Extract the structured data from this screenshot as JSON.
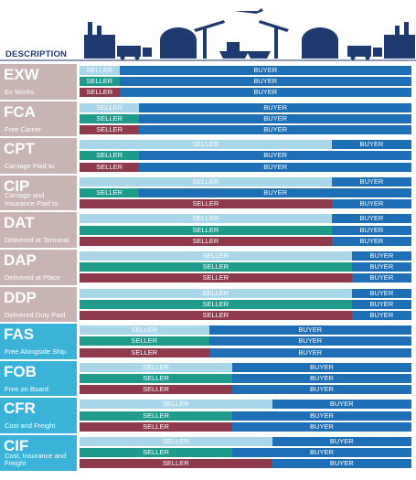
{
  "header": {
    "column": "DESCRIPTION"
  },
  "labels": {
    "seller": "SELLER",
    "buyer": "BUYER"
  },
  "row_colors": [
    "#a9d6e8",
    "#1f9b8c",
    "#8e3a4c"
  ],
  "buyer_color": "#1f6fb6",
  "terms": [
    {
      "code": "EXW",
      "description": "Ex Works",
      "color": "#c9b4b4",
      "seller_share": [
        12,
        12,
        12
      ]
    },
    {
      "code": "FCA",
      "description": "Free Carrier",
      "color": "#c9b4b4",
      "seller_share": [
        18,
        18,
        18
      ]
    },
    {
      "code": "CPT",
      "description": "Carriage Paid to",
      "color": "#c9b4b4",
      "seller_share": [
        76,
        18,
        18
      ]
    },
    {
      "code": "CIP",
      "description": "Carriage and Insurance Paid to",
      "color": "#c9b4b4",
      "seller_share": [
        76,
        18,
        76
      ]
    },
    {
      "code": "DAT",
      "description": "Delivered at Terminal",
      "color": "#c9b4b4",
      "seller_share": [
        76,
        76,
        76
      ]
    },
    {
      "code": "DAP",
      "description": "Delivered at Place",
      "color": "#c9b4b4",
      "seller_share": [
        82,
        82,
        82
      ]
    },
    {
      "code": "DDP",
      "description": "Delivered Duty Paid",
      "color": "#c9b4b4",
      "seller_share": [
        82,
        82,
        82
      ]
    },
    {
      "code": "FAS",
      "description": "Free Alongside Ship",
      "color": "#3bb3d8",
      "seller_share": [
        39,
        39,
        39
      ]
    },
    {
      "code": "FOB",
      "description": "Free on Board",
      "color": "#3bb3d8",
      "seller_share": [
        46,
        46,
        46
      ]
    },
    {
      "code": "CFR",
      "description": "Cost and Freight",
      "color": "#3bb3d8",
      "seller_share": [
        58,
        46,
        46
      ]
    },
    {
      "code": "CIF",
      "description": "Cost, Insurance and Freight",
      "color": "#3bb3d8",
      "seller_share": [
        58,
        46,
        58
      ]
    }
  ]
}
